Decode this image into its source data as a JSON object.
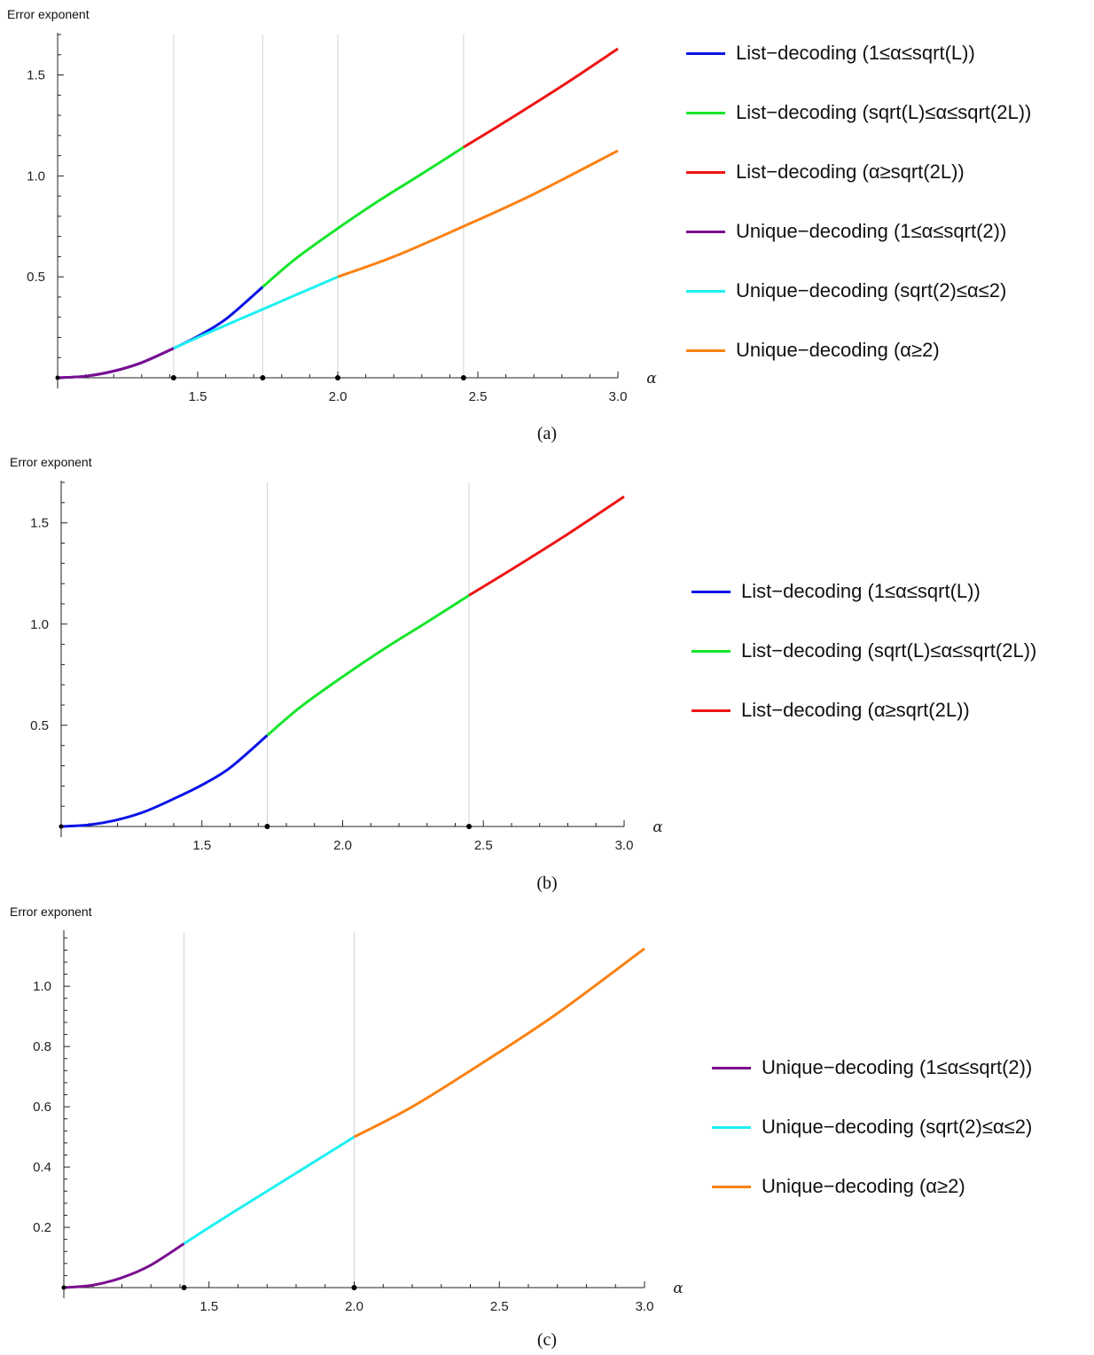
{
  "colors": {
    "list_low": "#0a13e6",
    "list_mid": "#16e52b",
    "list_high": "#ee1414",
    "unique_low": "#7a0f8f",
    "unique_mid": "#1ef0f0",
    "unique_high": "#fb8112",
    "gridline": "#d3d3d3",
    "axis": "#222222"
  },
  "chart_data": [
    {
      "type": "line",
      "panel": "a",
      "caption": "(a)",
      "ylabel": "Error exponent",
      "xlabel": "α",
      "xlim": [
        1.0,
        3.0
      ],
      "ylim": [
        0,
        1.7
      ],
      "xticks": [
        1.5,
        2.0,
        2.5,
        3.0
      ],
      "xtick_labels": [
        "1.5",
        "2.0",
        "2.5",
        "3.0"
      ],
      "yticks": [
        0.5,
        1.0,
        1.5
      ],
      "ytick_labels": [
        "0.5",
        "1.0",
        "1.5"
      ],
      "vertical_gridlines": [
        1.414,
        1.732,
        2.0,
        2.449
      ],
      "marked_points": [
        1.414,
        1.732,
        2.0,
        2.449
      ],
      "legend_position": "right",
      "series": [
        {
          "name": "List−decoding (1≤α≤sqrt(L))",
          "color_key": "list_low",
          "x": [
            1.0,
            1.1,
            1.2,
            1.3,
            1.414,
            1.5,
            1.6,
            1.732
          ],
          "y": [
            0.0,
            0.008,
            0.033,
            0.075,
            0.146,
            0.205,
            0.29,
            0.45
          ]
        },
        {
          "name": "List−decoding (sqrt(L)≤α≤sqrt(2L))",
          "color_key": "list_mid",
          "x": [
            1.732,
            1.85,
            2.0,
            2.15,
            2.3,
            2.449
          ],
          "y": [
            0.45,
            0.59,
            0.74,
            0.88,
            1.01,
            1.142
          ]
        },
        {
          "name": "List−decoding (α≥sqrt(2L))",
          "color_key": "list_high",
          "x": [
            2.449,
            2.6,
            2.8,
            3.0
          ],
          "y": [
            1.142,
            1.27,
            1.445,
            1.63
          ]
        },
        {
          "name": "Unique−decoding (1≤α≤sqrt(2))",
          "color_key": "unique_low",
          "x": [
            1.0,
            1.1,
            1.2,
            1.3,
            1.414
          ],
          "y": [
            0.0,
            0.008,
            0.033,
            0.075,
            0.146
          ]
        },
        {
          "name": "Unique−decoding (sqrt(2)≤α≤2)",
          "color_key": "unique_mid",
          "x": [
            1.414,
            1.55,
            1.7,
            1.85,
            2.0
          ],
          "y": [
            0.146,
            0.23,
            0.32,
            0.41,
            0.5
          ]
        },
        {
          "name": "Unique−decoding (α≥2)",
          "color_key": "unique_high",
          "x": [
            2.0,
            2.2,
            2.449,
            2.7,
            3.0
          ],
          "y": [
            0.5,
            0.6,
            0.75,
            0.91,
            1.125
          ]
        }
      ]
    },
    {
      "type": "line",
      "panel": "b",
      "caption": "(b)",
      "ylabel": "Error exponent",
      "xlabel": "α",
      "xlim": [
        1.0,
        3.0
      ],
      "ylim": [
        0,
        1.7
      ],
      "xticks": [
        1.5,
        2.0,
        2.5,
        3.0
      ],
      "xtick_labels": [
        "1.5",
        "2.0",
        "2.5",
        "3.0"
      ],
      "yticks": [
        0.5,
        1.0,
        1.5
      ],
      "ytick_labels": [
        "0.5",
        "1.0",
        "1.5"
      ],
      "vertical_gridlines": [
        1.732,
        2.449
      ],
      "marked_points": [
        1.732,
        2.449
      ],
      "legend_position": "right",
      "series": [
        {
          "name": "List−decoding (1≤α≤sqrt(L))",
          "color_key": "list_low",
          "x": [
            1.0,
            1.1,
            1.2,
            1.3,
            1.414,
            1.5,
            1.6,
            1.732
          ],
          "y": [
            0.0,
            0.008,
            0.033,
            0.075,
            0.146,
            0.205,
            0.29,
            0.45
          ]
        },
        {
          "name": "List−decoding (sqrt(L)≤α≤sqrt(2L))",
          "color_key": "list_mid",
          "x": [
            1.732,
            1.85,
            2.0,
            2.15,
            2.3,
            2.449
          ],
          "y": [
            0.45,
            0.59,
            0.74,
            0.88,
            1.01,
            1.142
          ]
        },
        {
          "name": "List−decoding (α≥sqrt(2L))",
          "color_key": "list_high",
          "x": [
            2.449,
            2.6,
            2.8,
            3.0
          ],
          "y": [
            1.142,
            1.27,
            1.445,
            1.63
          ]
        }
      ]
    },
    {
      "type": "line",
      "panel": "c",
      "caption": "(c)",
      "ylabel": "Error exponent",
      "xlabel": "α",
      "xlim": [
        1.0,
        3.0
      ],
      "ylim": [
        0,
        1.18
      ],
      "xticks": [
        1.5,
        2.0,
        2.5,
        3.0
      ],
      "xtick_labels": [
        "1.5",
        "2.0",
        "2.5",
        "3.0"
      ],
      "yticks": [
        0.2,
        0.4,
        0.6,
        0.8,
        1.0
      ],
      "ytick_labels": [
        "0.2",
        "0.4",
        "0.6",
        "0.8",
        "1.0"
      ],
      "vertical_gridlines": [
        1.414,
        2.0
      ],
      "marked_points": [
        1.414,
        2.0
      ],
      "legend_position": "right",
      "series": [
        {
          "name": "Unique−decoding (1≤α≤sqrt(2))",
          "color_key": "unique_low",
          "x": [
            1.0,
            1.1,
            1.2,
            1.3,
            1.414
          ],
          "y": [
            0.0,
            0.008,
            0.033,
            0.075,
            0.146
          ]
        },
        {
          "name": "Unique−decoding (sqrt(2)≤α≤2)",
          "color_key": "unique_mid",
          "x": [
            1.414,
            1.55,
            1.7,
            1.85,
            2.0
          ],
          "y": [
            0.146,
            0.23,
            0.32,
            0.41,
            0.5
          ]
        },
        {
          "name": "Unique−decoding (α≥2)",
          "color_key": "unique_high",
          "x": [
            2.0,
            2.2,
            2.449,
            2.7,
            3.0
          ],
          "y": [
            0.5,
            0.6,
            0.75,
            0.91,
            1.125
          ]
        }
      ]
    }
  ]
}
